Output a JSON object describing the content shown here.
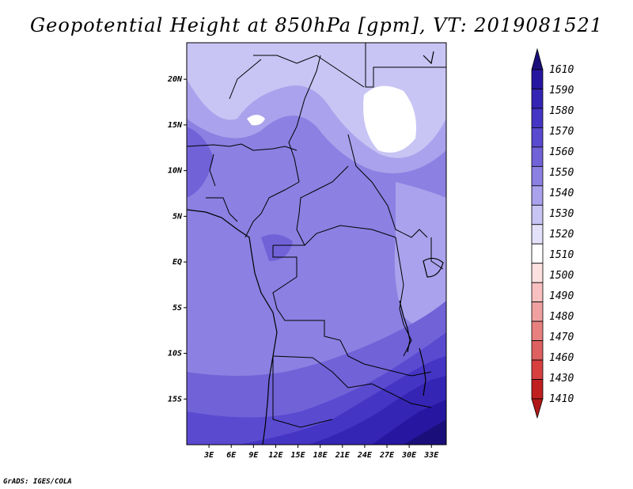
{
  "title": "Geopotential Height at 850hPa [gpm], VT: 2019081521",
  "credit": "GrADS: IGES/COLA",
  "map": {
    "lon_range": [
      0,
      35
    ],
    "lat_range": [
      -20,
      24
    ],
    "x_ticks": [
      "3E",
      "6E",
      "9E",
      "12E",
      "15E",
      "18E",
      "21E",
      "24E",
      "27E",
      "30E",
      "33E"
    ],
    "y_ticks": [
      "20N",
      "15N",
      "10N",
      "5N",
      "EQ",
      "5S",
      "10S",
      "15S"
    ]
  },
  "colorbar": {
    "labels": [
      "1610",
      "1590",
      "1580",
      "1570",
      "1560",
      "1550",
      "1540",
      "1530",
      "1520",
      "1510",
      "1500",
      "1490",
      "1480",
      "1470",
      "1460",
      "1430",
      "1410"
    ],
    "colors": [
      "#1a0f7a",
      "#2616a0",
      "#3525b4",
      "#4535c4",
      "#5a4ad0",
      "#7262d8",
      "#8c80e2",
      "#aaa2ec",
      "#c8c4f4",
      "#e4e2fa",
      "#ffffff",
      "#fde0e0",
      "#f8c0c0",
      "#f0a0a0",
      "#e88080",
      "#de6060",
      "#d84040",
      "#c02020",
      "#b01818"
    ]
  }
}
